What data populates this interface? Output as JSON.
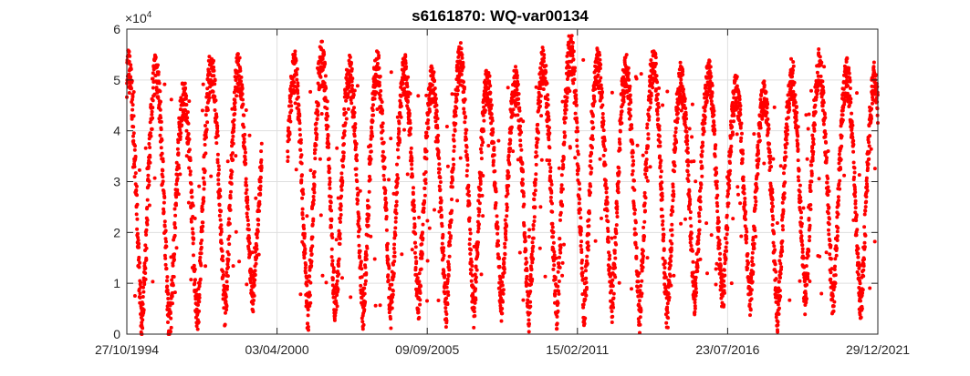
{
  "chart_data": {
    "type": "scatter",
    "title": "s6161870: WQ-var00134",
    "xlabel": "",
    "ylabel": "",
    "y_multiplier": "×10",
    "y_exponent": "4",
    "x_range": [
      "1994-10-27",
      "2021-12-29"
    ],
    "x_ticks": [
      "1994-10-27",
      "2000-04-03",
      "2005-09-09",
      "2011-02-15",
      "2016-07-23",
      "2021-12-29"
    ],
    "x_tick_labels": [
      "27/10/1994",
      "03/04/2000",
      "09/09/2005",
      "15/02/2011",
      "23/07/2016",
      "29/12/2021"
    ],
    "ylim": [
      0,
      60000
    ],
    "y_ticks": [
      0,
      10000,
      20000,
      30000,
      40000,
      50000,
      60000
    ],
    "y_tick_labels": [
      "0",
      "1",
      "2",
      "3",
      "4",
      "5",
      "6"
    ],
    "grid": true,
    "marker_color": "#ff0000",
    "series": [
      {
        "marker": "dot",
        "gaps": [
          [
            "1999-09-15",
            "2000-08-20"
          ]
        ],
        "seasonal_peaks": [
          {
            "date": "1995-11-15",
            "value": 52000
          },
          {
            "date": "1996-10-20",
            "value": 46000
          },
          {
            "date": "1997-10-15",
            "value": 52000
          },
          {
            "date": "1998-10-10",
            "value": 53000
          },
          {
            "date": "1999-08-01",
            "value": 41000
          },
          {
            "date": "2001-01-15",
            "value": 53000
          },
          {
            "date": "2002-01-10",
            "value": 53500
          },
          {
            "date": "2003-01-05",
            "value": 51000
          },
          {
            "date": "2004-01-01",
            "value": 52000
          },
          {
            "date": "2005-01-01",
            "value": 51000
          },
          {
            "date": "2006-01-10",
            "value": 49000
          },
          {
            "date": "2007-01-15",
            "value": 54000
          },
          {
            "date": "2008-01-10",
            "value": 48000
          },
          {
            "date": "2009-01-15",
            "value": 49000
          },
          {
            "date": "2010-01-15",
            "value": 53000
          },
          {
            "date": "2011-02-15",
            "value": 57000
          },
          {
            "date": "2012-01-20",
            "value": 51000
          },
          {
            "date": "2013-01-15",
            "value": 52000
          },
          {
            "date": "2014-01-10",
            "value": 53000
          },
          {
            "date": "2015-01-10",
            "value": 49000
          },
          {
            "date": "2016-01-15",
            "value": 51000
          },
          {
            "date": "2017-01-20",
            "value": 47000
          },
          {
            "date": "2018-01-20",
            "value": 47000
          },
          {
            "date": "2019-01-15",
            "value": 51000
          },
          {
            "date": "2020-01-10",
            "value": 53000
          },
          {
            "date": "2021-01-15",
            "value": 50000
          }
        ],
        "seasonal_troughs": [
          {
            "date": "1995-04-15",
            "value": 2000
          },
          {
            "date": "1996-07-15",
            "value": 1000
          },
          {
            "date": "1997-06-15",
            "value": 3000
          },
          {
            "date": "1998-06-10",
            "value": 5000
          },
          {
            "date": "1999-05-15",
            "value": 7000
          },
          {
            "date": "2001-07-15",
            "value": 4000
          },
          {
            "date": "2002-07-15",
            "value": 5000
          },
          {
            "date": "2003-07-15",
            "value": 4500
          },
          {
            "date": "2004-07-15",
            "value": 5000
          },
          {
            "date": "2005-07-15",
            "value": 6000
          },
          {
            "date": "2006-07-15",
            "value": 5000
          },
          {
            "date": "2007-07-15",
            "value": 5000
          },
          {
            "date": "2008-07-15",
            "value": 6000
          },
          {
            "date": "2009-07-15",
            "value": 4000
          },
          {
            "date": "2010-07-15",
            "value": 5000
          },
          {
            "date": "2011-08-15",
            "value": 5000
          },
          {
            "date": "2012-08-15",
            "value": 6000
          },
          {
            "date": "2013-07-15",
            "value": 4000
          },
          {
            "date": "2014-07-15",
            "value": 4000
          },
          {
            "date": "2015-07-15",
            "value": 7000
          },
          {
            "date": "2016-07-15",
            "value": 6000
          },
          {
            "date": "2017-07-15",
            "value": 7000
          },
          {
            "date": "2018-07-15",
            "value": 3000
          },
          {
            "date": "2019-07-15",
            "value": 8000
          },
          {
            "date": "2020-07-15",
            "value": 6000
          },
          {
            "date": "2021-07-15",
            "value": 5000
          }
        ]
      }
    ]
  }
}
